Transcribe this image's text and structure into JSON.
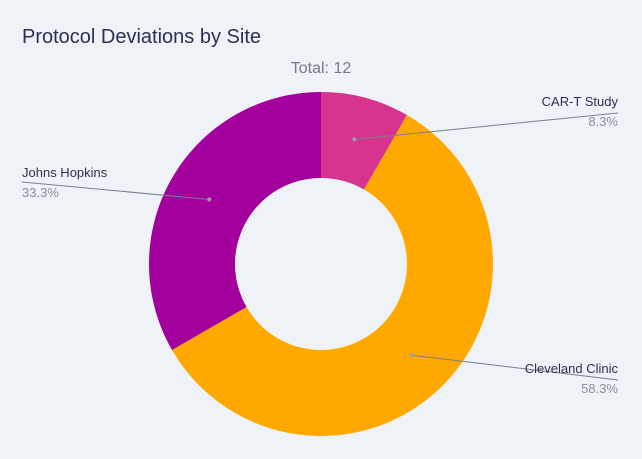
{
  "chart_data": {
    "type": "pie",
    "title": "Protocol Deviations by Site",
    "subtitle": "Total: 12",
    "hole": 0.5,
    "slices": [
      {
        "label": "CAR-T Study",
        "value": 1,
        "percent": "8.3%",
        "color": "#d6348f"
      },
      {
        "label": "Cleveland Clinic",
        "value": 7,
        "percent": "58.3%",
        "color": "#ffa800"
      },
      {
        "label": "Johns Hopkins",
        "value": 4,
        "percent": "33.3%",
        "color": "#a3009e"
      }
    ]
  }
}
